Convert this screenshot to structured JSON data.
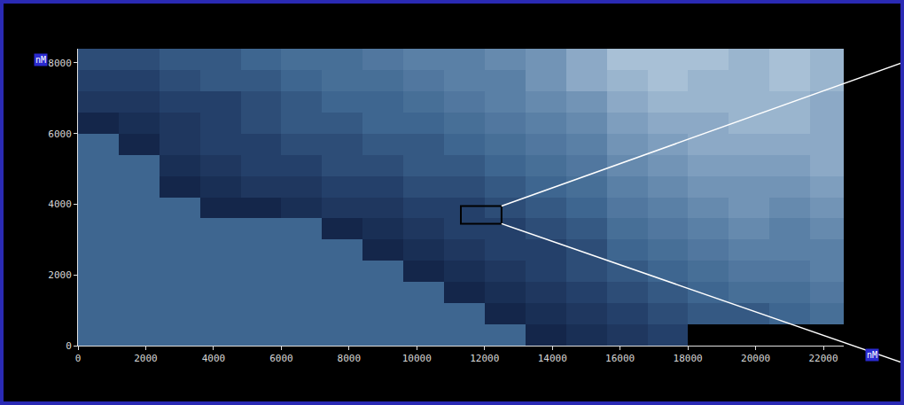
{
  "chart_data": {
    "type": "heatmap",
    "xlabel": "nM",
    "ylabel": "nM",
    "xlim": [
      0,
      22600
    ],
    "ylim": [
      0,
      8400
    ],
    "xticks": [
      0,
      2000,
      4000,
      6000,
      8000,
      10000,
      12000,
      14000,
      16000,
      18000,
      20000,
      22000
    ],
    "yticks": [
      0,
      2000,
      4000,
      6000,
      8000
    ],
    "zlim": [
      0,
      10
    ],
    "x": [
      600,
      1800,
      3000,
      4200,
      5400,
      6600,
      7800,
      9000,
      10200,
      11400,
      12600,
      13800,
      15000,
      16200,
      17400,
      18600,
      19800,
      21000,
      22200
    ],
    "y": [
      300,
      900,
      1500,
      2100,
      2700,
      3300,
      3900,
      4500,
      5100,
      5700,
      6300,
      6900,
      7500,
      8100
    ],
    "z": [
      [
        4.5,
        4.5,
        4.5,
        4.5,
        4.5,
        4.5,
        4.5,
        4.5,
        4.5,
        4.5,
        4.5,
        1.5,
        2,
        2.5,
        3,
        null,
        null,
        null,
        null
      ],
      [
        4.5,
        4.5,
        4.5,
        4.5,
        4.5,
        4.5,
        4.5,
        4.5,
        4.5,
        4.5,
        1.5,
        2,
        2.5,
        3,
        3.5,
        4,
        4,
        4.5,
        5
      ],
      [
        4.5,
        4.5,
        4.5,
        4.5,
        4.5,
        4.5,
        4.5,
        4.5,
        4.5,
        1.5,
        2,
        2.5,
        3,
        3.5,
        4,
        4.5,
        5,
        5,
        5.5
      ],
      [
        4.5,
        4.5,
        4.5,
        4.5,
        4.5,
        4.5,
        4.5,
        4.5,
        1.5,
        2,
        2.5,
        3,
        3.5,
        4,
        4.5,
        5,
        5.5,
        5.5,
        6
      ],
      [
        4.5,
        4.5,
        4.5,
        4.5,
        4.5,
        4.5,
        4.5,
        1.5,
        2,
        2.5,
        3,
        3,
        3.5,
        4.5,
        5,
        5.5,
        6,
        6,
        6
      ],
      [
        4.5,
        4.5,
        4.5,
        4.5,
        4.5,
        4.5,
        1.5,
        2,
        2.5,
        3,
        3,
        3.5,
        4,
        5,
        5.5,
        6,
        6.5,
        6,
        6.5
      ],
      [
        4.5,
        4.5,
        4.5,
        1.5,
        1.5,
        2,
        2.5,
        2.5,
        3,
        3,
        3.5,
        4,
        4.5,
        5.5,
        6,
        6.5,
        7,
        6.5,
        7
      ],
      [
        4.5,
        4.5,
        1.5,
        2,
        2.5,
        2.5,
        3,
        3,
        3.5,
        3.5,
        4,
        4.5,
        5,
        6,
        6.5,
        7,
        7,
        7,
        7.5
      ],
      [
        4.5,
        4.5,
        2,
        2.5,
        3,
        3,
        3.5,
        3.5,
        4,
        4,
        4.5,
        5,
        5.5,
        6.5,
        7,
        7.5,
        7.5,
        7.5,
        8
      ],
      [
        4.5,
        1.5,
        2.5,
        3,
        3,
        3.5,
        3.5,
        4,
        4,
        4.5,
        5,
        5.5,
        6,
        7,
        7.5,
        8,
        8,
        8,
        8
      ],
      [
        1.5,
        2,
        2.5,
        3,
        3.5,
        4,
        4,
        4.5,
        4.5,
        5,
        5.5,
        6,
        6.5,
        7.5,
        8,
        8,
        8.5,
        8.5,
        8
      ],
      [
        2.5,
        2.5,
        3,
        3,
        3.5,
        4,
        4.5,
        4.5,
        5,
        5.5,
        6,
        6.5,
        7,
        8,
        8.5,
        8.5,
        8.5,
        8.5,
        8
      ],
      [
        3,
        3,
        3.5,
        4,
        4,
        4.5,
        5,
        5,
        5.5,
        6,
        6,
        7,
        8,
        8.5,
        9,
        8.5,
        8.5,
        9,
        8.5
      ],
      [
        3.5,
        3.5,
        4,
        4,
        4.5,
        5,
        5,
        5.5,
        6,
        6,
        6.5,
        7,
        8,
        9,
        9,
        9,
        8.5,
        9,
        8.5
      ]
    ],
    "highlight": {
      "x": [
        11300,
        12500
      ],
      "y": [
        3450,
        3950
      ]
    }
  }
}
